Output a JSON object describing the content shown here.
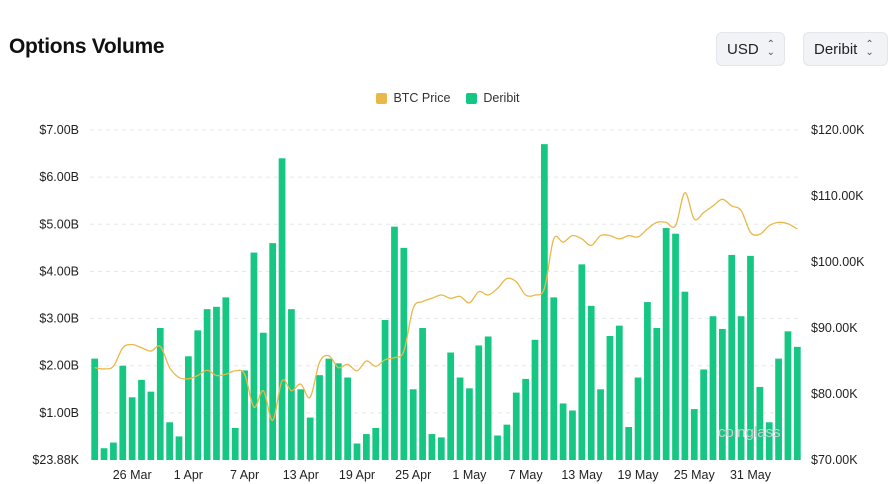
{
  "header": {
    "title": "Options Volume",
    "currency": "USD",
    "exchange": "Deribit"
  },
  "watermark": "coinglass",
  "colors": {
    "btc": "#e8b84a",
    "deribit": "#16c784",
    "grid": "#e6e8eb"
  },
  "chart_data": {
    "type": "bar",
    "legend": [
      "BTC Price",
      "Deribit"
    ],
    "legend_position": "top-center",
    "grid": true,
    "x_ticks": [
      "26 Mar",
      "1 Apr",
      "7 Apr",
      "13 Apr",
      "19 Apr",
      "25 Apr",
      "1 May",
      "7 May",
      "13 May",
      "19 May",
      "25 May",
      "31 May"
    ],
    "x_tick_start_index": 4,
    "x_tick_step": 6,
    "y_left": {
      "ticks": [
        "$23.88K",
        "$1.00B",
        "$2.00B",
        "$3.00B",
        "$4.00B",
        "$5.00B",
        "$6.00B",
        "$7.00B"
      ],
      "range": [
        0,
        7.0
      ],
      "unit": "B USD"
    },
    "y_right": {
      "ticks": [
        "$70.00K",
        "$80.00K",
        "$90.00K",
        "$100.00K",
        "$110.00K",
        "$120.00K"
      ],
      "range": [
        70000,
        120000
      ]
    },
    "series": [
      {
        "name": "Deribit",
        "type": "bar",
        "axis": "left",
        "values": [
          2.15,
          0.25,
          0.37,
          2.0,
          1.33,
          1.7,
          1.45,
          2.8,
          0.8,
          0.5,
          2.2,
          2.75,
          3.2,
          3.25,
          3.45,
          0.68,
          1.9,
          4.4,
          2.7,
          4.6,
          6.4,
          3.2,
          1.5,
          0.9,
          1.8,
          2.15,
          2.05,
          1.75,
          0.35,
          0.55,
          0.68,
          2.97,
          4.95,
          4.5,
          1.5,
          2.8,
          0.55,
          0.48,
          2.28,
          1.75,
          1.52,
          2.43,
          2.62,
          0.52,
          0.75,
          1.43,
          1.72,
          2.55,
          6.7,
          3.45,
          1.2,
          1.05,
          4.15,
          3.27,
          1.5,
          2.63,
          2.85,
          0.7,
          1.75,
          3.35,
          2.8,
          4.92,
          4.8,
          3.57,
          1.08,
          1.92,
          3.05,
          2.78,
          4.35,
          3.05,
          4.33,
          1.55,
          0.8,
          2.15,
          2.73,
          2.4
        ]
      },
      {
        "name": "BTC Price",
        "type": "line",
        "axis": "right",
        "values": [
          84000,
          83800,
          84200,
          87000,
          87500,
          87000,
          86500,
          87200,
          84000,
          82500,
          82300,
          82800,
          83600,
          82800,
          83000,
          83500,
          83000,
          78000,
          80500,
          76000,
          82000,
          80500,
          81500,
          79500,
          84800,
          85800,
          84000,
          84500,
          83500,
          85000,
          84200,
          85200,
          85500,
          86500,
          93000,
          94000,
          94500,
          95000,
          94500,
          94800,
          93800,
          95500,
          95000,
          96000,
          97500,
          97000,
          95000,
          95000,
          96000,
          103500,
          103000,
          104000,
          103500,
          102500,
          104000,
          104000,
          103500,
          104000,
          103800,
          105000,
          106000,
          106000,
          105500,
          110500,
          106500,
          107500,
          108500,
          109500,
          108500,
          107800,
          104500,
          104200,
          105500,
          106000,
          105800,
          105000
        ]
      }
    ]
  }
}
